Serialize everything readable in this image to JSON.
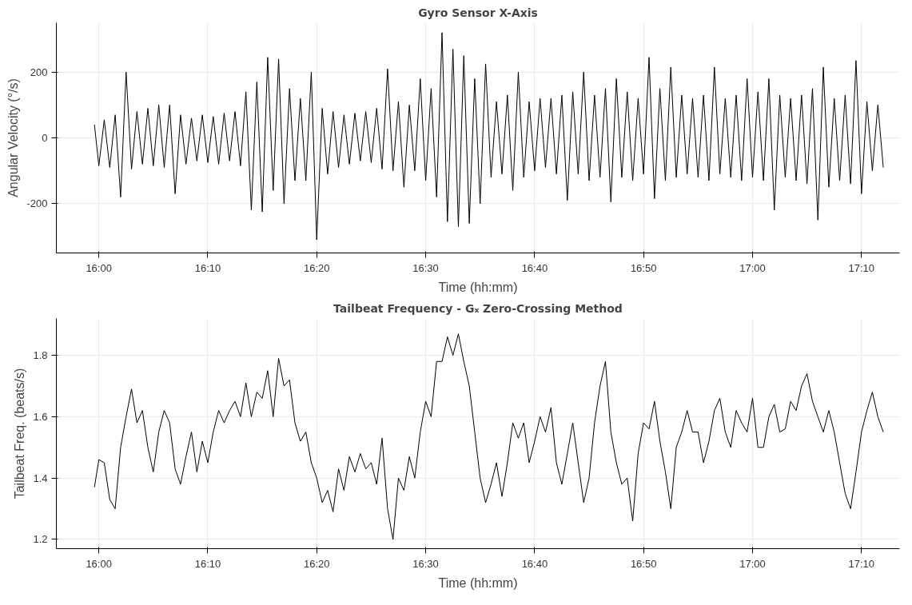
{
  "chart_data": [
    {
      "type": "line",
      "title": "Gyro Sensor X-Axis",
      "xlabel": "Time (hh:mm)",
      "ylabel": "Angular Velocity (°/s)",
      "x": [
        15.9933,
        16,
        16.0083,
        16.0167,
        16.025,
        16.0333,
        16.0417,
        16.05,
        16.0583,
        16.0667,
        16.075,
        16.0833,
        16.0917,
        16.1,
        16.1083,
        16.1167,
        16.125,
        16.1333,
        16.1417,
        16.15,
        16.1583,
        16.1667,
        16.175,
        16.1833,
        16.1917,
        16.2,
        16.2083,
        16.2167,
        16.225,
        16.2333,
        16.2417,
        16.25,
        16.2583,
        16.2667,
        16.275,
        16.2833,
        16.2917,
        16.3,
        16.3083,
        16.3167,
        16.325,
        16.3333,
        16.3417,
        16.35,
        16.3583,
        16.3667,
        16.375,
        16.3833,
        16.3917,
        16.4,
        16.4083,
        16.4167,
        16.425,
        16.4333,
        16.4417,
        16.45,
        16.4583,
        16.4667,
        16.475,
        16.4833,
        16.4917,
        16.5,
        16.5083,
        16.5167,
        16.525,
        16.5333,
        16.5417,
        16.55,
        16.5583,
        16.5667,
        16.575,
        16.5833,
        16.5917,
        16.6,
        16.6083,
        16.6167,
        16.625,
        16.6333,
        16.6417,
        16.65,
        16.6583,
        16.6667,
        16.675,
        16.6833,
        16.6917,
        16.7,
        16.7083,
        16.7167,
        16.725,
        16.7333,
        16.7417,
        16.75,
        16.7583,
        16.7667,
        16.775,
        16.7833,
        16.7917,
        16.8,
        16.8083,
        16.8167,
        16.825,
        16.8333,
        16.8417,
        16.85,
        16.8583,
        16.8667,
        16.875,
        16.8833,
        16.8917,
        16.9,
        16.9083,
        16.9167,
        16.925,
        16.9333,
        16.9417,
        16.95,
        16.9583,
        16.9667,
        16.975,
        16.9833,
        16.9917,
        17,
        17.0083,
        17.0167,
        17.025,
        17.0333,
        17.0417,
        17.05,
        17.0583,
        17.0667,
        17.075,
        17.0833,
        17.0917,
        17.1,
        17.1083,
        17.1167,
        17.125,
        17.1333,
        17.1417,
        17.15,
        17.1583,
        17.1667,
        17.175,
        17.1833,
        17.1917,
        17.2
      ],
      "values": [
        40,
        -85,
        55,
        -90,
        70,
        -180,
        200,
        -95,
        80,
        -80,
        90,
        -85,
        100,
        -90,
        100,
        -170,
        70,
        -80,
        60,
        -70,
        70,
        -75,
        65,
        -80,
        75,
        -70,
        80,
        -85,
        140,
        -220,
        170,
        -225,
        245,
        -160,
        240,
        -200,
        150,
        -130,
        120,
        -130,
        200,
        -310,
        90,
        -110,
        80,
        -90,
        70,
        -80,
        75,
        -70,
        80,
        -75,
        90,
        -95,
        210,
        -100,
        110,
        -150,
        100,
        -100,
        180,
        -130,
        150,
        -180,
        320,
        -255,
        270,
        -270,
        250,
        -260,
        180,
        -200,
        225,
        -120,
        110,
        -110,
        130,
        -160,
        200,
        -120,
        110,
        -100,
        120,
        -90,
        120,
        -110,
        130,
        -190,
        140,
        -110,
        200,
        -130,
        130,
        -120,
        150,
        -195,
        180,
        -120,
        140,
        -130,
        120,
        -110,
        245,
        -185,
        150,
        -130,
        215,
        -120,
        130,
        -110,
        120,
        -120,
        130,
        -130,
        215,
        -110,
        120,
        -120,
        130,
        -130,
        180,
        -120,
        140,
        -130,
        180,
        -220,
        130,
        -120,
        120,
        -130,
        130,
        -140,
        150,
        -250,
        215,
        -150,
        120,
        -130,
        130,
        -140,
        235,
        -170,
        110,
        -100,
        100,
        -90
      ],
      "color": "#000000",
      "xlim": [
        15.935,
        17.225
      ],
      "ylim": [
        -350,
        350
      ],
      "xticks": [
        {
          "value": 16,
          "label": "16:00"
        },
        {
          "value": 16.1667,
          "label": "16:10"
        },
        {
          "value": 16.3333,
          "label": "16:20"
        },
        {
          "value": 16.5,
          "label": "16:30"
        },
        {
          "value": 16.6667,
          "label": "16:40"
        },
        {
          "value": 16.8333,
          "label": "16:50"
        },
        {
          "value": 17,
          "label": "17:00"
        },
        {
          "value": 17.1667,
          "label": "17:10"
        }
      ],
      "yticks": [
        -200,
        0,
        200
      ],
      "grid": true,
      "line_style": "solid"
    },
    {
      "type": "line",
      "title": "Tailbeat Frequency - Gₓ Zero-Crossing Method",
      "xlabel": "Time (hh:mm)",
      "ylabel": "Tailbeat Freq. (beats/s)",
      "x": [
        15.9933,
        16,
        16.0083,
        16.0167,
        16.025,
        16.0333,
        16.0417,
        16.05,
        16.0583,
        16.0667,
        16.075,
        16.0833,
        16.0917,
        16.1,
        16.1083,
        16.1167,
        16.125,
        16.1333,
        16.1417,
        16.15,
        16.1583,
        16.1667,
        16.175,
        16.1833,
        16.1917,
        16.2,
        16.2083,
        16.2167,
        16.225,
        16.2333,
        16.2417,
        16.25,
        16.2583,
        16.2667,
        16.275,
        16.2833,
        16.2917,
        16.3,
        16.3083,
        16.3167,
        16.325,
        16.3333,
        16.3417,
        16.35,
        16.3583,
        16.3667,
        16.375,
        16.3833,
        16.3917,
        16.4,
        16.4083,
        16.4167,
        16.425,
        16.4333,
        16.4417,
        16.45,
        16.4583,
        16.4667,
        16.475,
        16.4833,
        16.4917,
        16.5,
        16.5083,
        16.5167,
        16.525,
        16.5333,
        16.5417,
        16.55,
        16.5583,
        16.5667,
        16.575,
        16.5833,
        16.5917,
        16.6,
        16.6083,
        16.6167,
        16.625,
        16.6333,
        16.6417,
        16.65,
        16.6583,
        16.6667,
        16.675,
        16.6833,
        16.6917,
        16.7,
        16.7083,
        16.7167,
        16.725,
        16.7333,
        16.7417,
        16.75,
        16.7583,
        16.7667,
        16.775,
        16.7833,
        16.7917,
        16.8,
        16.8083,
        16.8167,
        16.825,
        16.8333,
        16.8417,
        16.85,
        16.8583,
        16.8667,
        16.875,
        16.8833,
        16.8917,
        16.9,
        16.9083,
        16.9167,
        16.925,
        16.9333,
        16.9417,
        16.95,
        16.9583,
        16.9667,
        16.975,
        16.9833,
        16.9917,
        17,
        17.0083,
        17.0167,
        17.025,
        17.0333,
        17.0417,
        17.05,
        17.0583,
        17.0667,
        17.075,
        17.0833,
        17.0917,
        17.1,
        17.1083,
        17.1167,
        17.125,
        17.1333,
        17.1417,
        17.15,
        17.1583,
        17.1667,
        17.175,
        17.1833,
        17.1917,
        17.2
      ],
      "values": [
        1.37,
        1.46,
        1.45,
        1.33,
        1.3,
        1.5,
        1.6,
        1.69,
        1.58,
        1.62,
        1.5,
        1.42,
        1.55,
        1.62,
        1.58,
        1.43,
        1.38,
        1.47,
        1.55,
        1.42,
        1.52,
        1.45,
        1.55,
        1.62,
        1.58,
        1.62,
        1.65,
        1.6,
        1.71,
        1.6,
        1.68,
        1.66,
        1.75,
        1.6,
        1.79,
        1.7,
        1.72,
        1.58,
        1.52,
        1.55,
        1.45,
        1.4,
        1.32,
        1.36,
        1.29,
        1.43,
        1.36,
        1.47,
        1.42,
        1.48,
        1.43,
        1.45,
        1.38,
        1.53,
        1.3,
        1.2,
        1.4,
        1.36,
        1.47,
        1.4,
        1.55,
        1.65,
        1.6,
        1.78,
        1.78,
        1.86,
        1.8,
        1.87,
        1.78,
        1.7,
        1.55,
        1.4,
        1.32,
        1.38,
        1.45,
        1.34,
        1.45,
        1.58,
        1.53,
        1.58,
        1.45,
        1.52,
        1.6,
        1.55,
        1.63,
        1.45,
        1.38,
        1.48,
        1.58,
        1.45,
        1.32,
        1.4,
        1.58,
        1.7,
        1.78,
        1.55,
        1.45,
        1.38,
        1.4,
        1.26,
        1.48,
        1.58,
        1.56,
        1.65,
        1.52,
        1.42,
        1.3,
        1.5,
        1.55,
        1.62,
        1.55,
        1.55,
        1.45,
        1.52,
        1.62,
        1.66,
        1.55,
        1.5,
        1.62,
        1.58,
        1.55,
        1.66,
        1.5,
        1.5,
        1.6,
        1.64,
        1.55,
        1.56,
        1.65,
        1.62,
        1.7,
        1.74,
        1.65,
        1.6,
        1.55,
        1.62,
        1.55,
        1.45,
        1.35,
        1.3,
        1.42,
        1.55,
        1.62,
        1.68,
        1.6,
        1.55
      ],
      "color": "#000000",
      "xlim": [
        15.935,
        17.225
      ],
      "ylim": [
        1.17,
        1.92
      ],
      "xticks": [
        {
          "value": 16,
          "label": "16:00"
        },
        {
          "value": 16.1667,
          "label": "16:10"
        },
        {
          "value": 16.3333,
          "label": "16:20"
        },
        {
          "value": 16.5,
          "label": "16:30"
        },
        {
          "value": 16.6667,
          "label": "16:40"
        },
        {
          "value": 16.8333,
          "label": "16:50"
        },
        {
          "value": 17,
          "label": "17:00"
        },
        {
          "value": 17.1667,
          "label": "17:10"
        }
      ],
      "yticks": [
        1.2,
        1.4,
        1.6,
        1.8
      ],
      "grid": true,
      "line_style": "solid"
    }
  ]
}
